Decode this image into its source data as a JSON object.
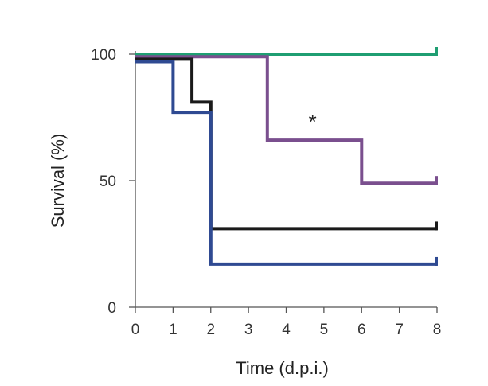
{
  "chart_data": {
    "type": "line",
    "step": true,
    "xlabel": "Time (d.p.i.)",
    "ylabel": "Survival (%)",
    "xlim": [
      0,
      8
    ],
    "ylim": [
      0,
      100
    ],
    "xticks": [
      "0",
      "1",
      "2",
      "3",
      "4",
      "5",
      "6",
      "7",
      "8"
    ],
    "yticks": [
      "0",
      "50",
      "100"
    ],
    "grid": false,
    "series": [
      {
        "color": "#1f9e72",
        "points": [
          [
            0,
            100
          ],
          [
            8,
            100
          ]
        ]
      },
      {
        "color": "#7a4f8e",
        "points": [
          [
            0,
            99
          ],
          [
            3.5,
            99
          ],
          [
            3.5,
            66
          ],
          [
            6,
            66
          ],
          [
            6,
            49
          ],
          [
            8,
            49
          ]
        ]
      },
      {
        "color": "#1a1a1a",
        "points": [
          [
            0,
            98
          ],
          [
            1.5,
            98
          ],
          [
            1.5,
            81
          ],
          [
            2,
            81
          ],
          [
            2,
            31
          ],
          [
            8,
            31
          ]
        ]
      },
      {
        "color": "#2f4a92",
        "points": [
          [
            0,
            97
          ],
          [
            1,
            97
          ],
          [
            1,
            77
          ],
          [
            2,
            77
          ],
          [
            2,
            17
          ],
          [
            8,
            17
          ]
        ]
      }
    ],
    "annotations": [
      {
        "text": "*",
        "x": 4.7,
        "y": 73
      }
    ]
  }
}
